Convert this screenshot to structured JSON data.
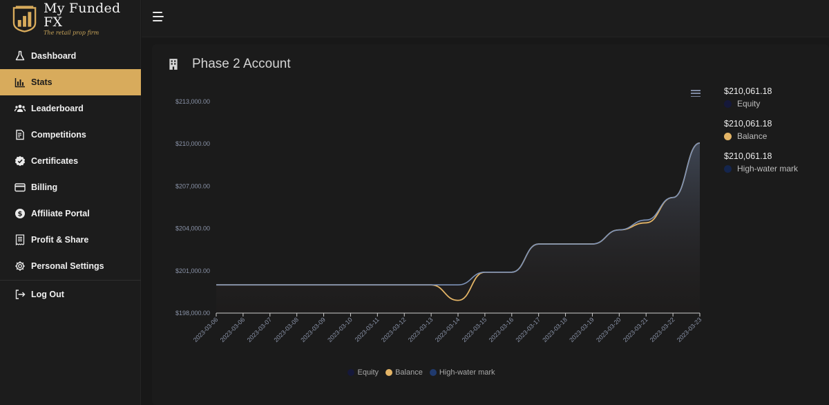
{
  "brand": {
    "title": "My Funded FX",
    "subtitle": "The retail prop firm",
    "accent": "#d8ab5c"
  },
  "sidebar": {
    "items": [
      {
        "label": "Dashboard",
        "icon": "flask-icon"
      },
      {
        "label": "Stats",
        "icon": "bar-chart-icon",
        "active": true
      },
      {
        "label": "Leaderboard",
        "icon": "users-icon"
      },
      {
        "label": "Competitions",
        "icon": "document-icon"
      },
      {
        "label": "Certificates",
        "icon": "badge-check-icon"
      },
      {
        "label": "Billing",
        "icon": "credit-card-icon"
      },
      {
        "label": "Affiliate Portal",
        "icon": "dollar-circle-icon"
      },
      {
        "label": "Profit & Share",
        "icon": "receipt-icon"
      },
      {
        "label": "Personal Settings",
        "icon": "gear-icon"
      },
      {
        "label": "Log Out",
        "icon": "logout-icon"
      }
    ]
  },
  "card": {
    "title": "Phase 2 Account",
    "icon": "building-icon"
  },
  "legend_right": [
    {
      "value": "$210,061.18",
      "name": "Equity",
      "color": "#15183a"
    },
    {
      "value": "$210,061.18",
      "name": "Balance",
      "color": "#e3b466"
    },
    {
      "value": "$210,061.18",
      "name": "High-water mark",
      "color": "#14254d"
    }
  ],
  "legend_bottom": [
    {
      "name": "Equity",
      "color": "#15183a"
    },
    {
      "name": "Balance",
      "color": "#e3b466"
    },
    {
      "name": "High-water mark",
      "color": "#203a6e"
    }
  ],
  "chart_data": {
    "type": "area",
    "categories": [
      "2023-03-06",
      "2023-03-06",
      "2023-03-07",
      "2023-03-08",
      "2023-03-09",
      "2023-03-10",
      "2023-03-11",
      "2023-03-12",
      "2023-03-13",
      "2023-03-14",
      "2023-03-15",
      "2023-03-16",
      "2023-03-17",
      "2023-03-18",
      "2023-03-19",
      "2023-03-20",
      "2023-03-21",
      "2023-03-22",
      "2023-03-23"
    ],
    "y_ticks": [
      "$213,000.00",
      "$210,000.00",
      "$207,000.00",
      "$204,000.00",
      "$201,000.00",
      "$198,000.00"
    ],
    "ylim": [
      198000,
      213000
    ],
    "series": [
      {
        "name": "Equity",
        "color": "#7e93b8",
        "values": [
          200000,
          200000,
          200000,
          200000,
          200000,
          200000,
          200000,
          200000,
          200000,
          200000,
          200900,
          200900,
          202900,
          202900,
          202900,
          203900,
          204600,
          206200,
          210061.18
        ]
      },
      {
        "name": "Balance",
        "color": "#e3b466",
        "values": [
          200000,
          200000,
          200000,
          200000,
          200000,
          200000,
          200000,
          200000,
          200000,
          198900,
          200900,
          200900,
          202900,
          202900,
          202900,
          203900,
          204400,
          206200,
          210061.18
        ]
      },
      {
        "name": "High-water mark",
        "color": "#7e93b8",
        "values": [
          200000,
          200000,
          200000,
          200000,
          200000,
          200000,
          200000,
          200000,
          200000,
          200000,
          200900,
          200900,
          202900,
          202900,
          202900,
          203900,
          204600,
          206200,
          210061.18
        ]
      }
    ],
    "grid": false,
    "legend": "bottom"
  }
}
